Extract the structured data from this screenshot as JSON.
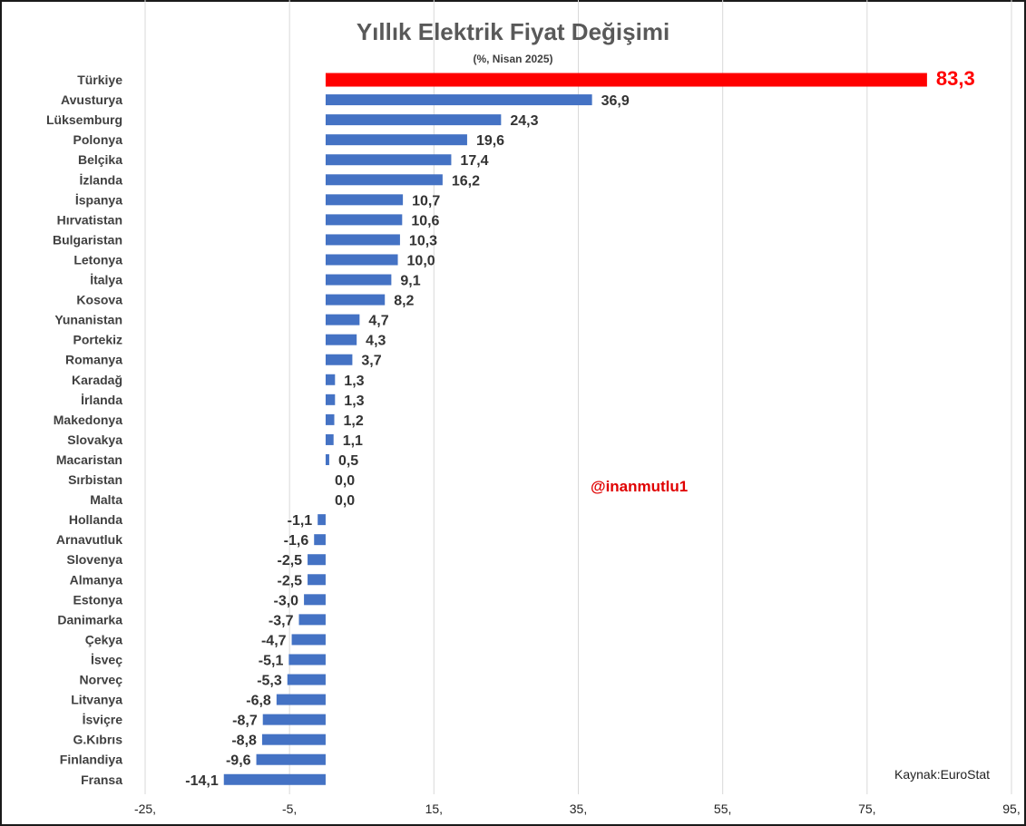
{
  "chart_data": {
    "type": "bar",
    "orientation": "horizontal",
    "title": "Yıllık Elektrik Fiyat Değişimi",
    "subtitle": "(%, Nisan 2025)",
    "categories": [
      "Türkiye",
      "Avusturya",
      "Lüksemburg",
      "Polonya",
      "Belçika",
      "İzlanda",
      "İspanya",
      "Hırvatistan",
      "Bulgaristan",
      "Letonya",
      "İtalya",
      "Kosova",
      "Yunanistan",
      "Portekiz",
      "Romanya",
      "Karadağ",
      "İrlanda",
      "Makedonya",
      "Slovakya",
      "Macaristan",
      "Sırbistan",
      "Malta",
      "Hollanda",
      "Arnavutluk",
      "Slovenya",
      "Almanya",
      "Estonya",
      "Danimarka",
      "Çekya",
      "İsveç",
      "Norveç",
      "Litvanya",
      "İsviçre",
      "G.Kıbrıs",
      "Finlandiya",
      "Fransa"
    ],
    "values": [
      83.3,
      36.9,
      24.3,
      19.6,
      17.4,
      16.2,
      10.7,
      10.6,
      10.3,
      10.0,
      9.1,
      8.2,
      4.7,
      4.3,
      3.7,
      1.3,
      1.3,
      1.2,
      1.1,
      0.5,
      0.0,
      0.0,
      -1.1,
      -1.6,
      -2.5,
      -2.5,
      -3.0,
      -3.7,
      -4.7,
      -5.1,
      -5.3,
      -6.8,
      -8.7,
      -8.8,
      -9.6,
      -14.1
    ],
    "value_labels": [
      "83,3",
      "36,9",
      "24,3",
      "19,6",
      "17,4",
      "16,2",
      "10,7",
      "10,6",
      "10,3",
      "10,0",
      "9,1",
      "8,2",
      "4,7",
      "4,3",
      "3,7",
      "1,3",
      "1,3",
      "1,2",
      "1,1",
      "0,5",
      "0,0",
      "0,0",
      "-1,1",
      "-1,6",
      "-2,5",
      "-2,5",
      "-3,0",
      "-3,7",
      "-4,7",
      "-5,1",
      "-5,3",
      "-6,8",
      "-8,7",
      "-8,8",
      "-9,6",
      "-14,1"
    ],
    "highlight_category": "Türkiye",
    "xlim": [
      -25,
      95
    ],
    "xticks": [
      -25,
      -5,
      15,
      35,
      55,
      75,
      95
    ],
    "xtick_labels": [
      "-25,",
      "-5,",
      "15,",
      "35,",
      "55,",
      "75,",
      "95,"
    ],
    "grid": true,
    "colors": {
      "bar": "#4472c4",
      "highlight": "#ff0000",
      "grid": "#d9d9d9"
    }
  },
  "watermark": "@inanmutlu1",
  "source": "Kaynak:EuroStat"
}
